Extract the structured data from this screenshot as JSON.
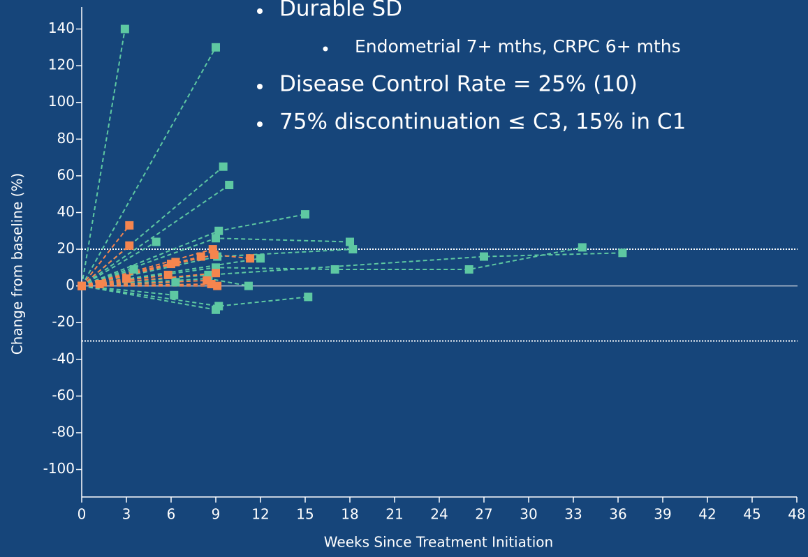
{
  "chart_data": {
    "type": "spider",
    "xlabel": "Weeks Since Treatment Initiation",
    "ylabel": "Change from baseline (%)",
    "xlim": [
      0,
      48
    ],
    "ylim": [
      -115,
      152
    ],
    "xticks": [
      0,
      3,
      6,
      9,
      12,
      15,
      18,
      21,
      24,
      27,
      30,
      33,
      36,
      39,
      42,
      45,
      48
    ],
    "yticks": [
      -100,
      -80,
      -60,
      -40,
      -20,
      0,
      20,
      40,
      60,
      80,
      100,
      120,
      140
    ],
    "ref_lines": [
      20,
      -30
    ],
    "annotations": [
      "Durable SD",
      "Endometrial 7+ mths, CRPC 6+ mths",
      "Disease Control Rate = 25% (10)",
      "75% discontinuation ≤ C3, 15% in C1"
    ],
    "series": [
      {
        "color": "#5ec8a2",
        "x": [
          0,
          2.9
        ],
        "values": [
          0,
          140
        ]
      },
      {
        "color": "#5ec8a2",
        "x": [
          0,
          9
        ],
        "values": [
          0,
          130
        ]
      },
      {
        "color": "#5ec8a2",
        "x": [
          0,
          9.5
        ],
        "values": [
          0,
          65
        ]
      },
      {
        "color": "#5ec8a2",
        "x": [
          0,
          9.9
        ],
        "values": [
          0,
          55
        ]
      },
      {
        "color": "#5ec8a2",
        "x": [
          0,
          9.2,
          15
        ],
        "values": [
          0,
          30,
          39
        ]
      },
      {
        "color": "#5ec8a2",
        "x": [
          0,
          5
        ],
        "values": [
          0,
          24
        ]
      },
      {
        "color": "#5ec8a2",
        "x": [
          0,
          9,
          18
        ],
        "values": [
          0,
          26,
          24
        ]
      },
      {
        "color": "#5ec8a2",
        "x": [
          0,
          9.1,
          18.2
        ],
        "values": [
          0,
          16,
          20
        ]
      },
      {
        "color": "#5ec8a2",
        "x": [
          0,
          12
        ],
        "values": [
          0,
          15
        ]
      },
      {
        "color": "#5ec8a2",
        "x": [
          0,
          9,
          17,
          26,
          33.6
        ],
        "values": [
          0,
          10,
          9,
          9,
          21
        ]
      },
      {
        "color": "#5ec8a2",
        "x": [
          0,
          8.5,
          27,
          36.3
        ],
        "values": [
          0,
          6,
          16,
          18
        ]
      },
      {
        "color": "#5ec8a2",
        "x": [
          0,
          8.5,
          11.2
        ],
        "values": [
          0,
          4,
          0
        ]
      },
      {
        "color": "#5ec8a2",
        "x": [
          0,
          6.3
        ],
        "values": [
          0,
          2
        ]
      },
      {
        "color": "#5ec8a2",
        "x": [
          0,
          6.2
        ],
        "values": [
          0,
          -5
        ]
      },
      {
        "color": "#5ec8a2",
        "x": [
          0,
          9
        ],
        "values": [
          0,
          -13
        ]
      },
      {
        "color": "#5ec8a2",
        "x": [
          0,
          9.2,
          15.2
        ],
        "values": [
          0,
          -11,
          -6
        ]
      },
      {
        "color": "#5ec8a2",
        "x": [
          0,
          3.5
        ],
        "values": [
          0,
          9
        ]
      },
      {
        "color": "#f5854e",
        "x": [
          0,
          3.2
        ],
        "values": [
          0,
          33
        ]
      },
      {
        "color": "#f5854e",
        "x": [
          0,
          3.2
        ],
        "values": [
          0,
          22
        ]
      },
      {
        "color": "#f5854e",
        "x": [
          0,
          6
        ],
        "values": [
          0,
          12
        ]
      },
      {
        "color": "#f5854e",
        "x": [
          0,
          6.3
        ],
        "values": [
          0,
          13
        ]
      },
      {
        "color": "#f5854e",
        "x": [
          0,
          8
        ],
        "values": [
          0,
          16
        ]
      },
      {
        "color": "#f5854e",
        "x": [
          0,
          8.8
        ],
        "values": [
          0,
          20
        ]
      },
      {
        "color": "#f5854e",
        "x": [
          0,
          8.9,
          11.3
        ],
        "values": [
          0,
          17,
          15
        ]
      },
      {
        "color": "#f5854e",
        "x": [
          0,
          9
        ],
        "values": [
          0,
          7
        ]
      },
      {
        "color": "#f5854e",
        "x": [
          0,
          8.4
        ],
        "values": [
          0,
          3
        ]
      },
      {
        "color": "#f5854e",
        "x": [
          0,
          8.7
        ],
        "values": [
          0,
          1
        ]
      },
      {
        "color": "#f5854e",
        "x": [
          0,
          9.1
        ],
        "values": [
          0,
          0
        ]
      },
      {
        "color": "#f5854e",
        "x": [
          0,
          5.8
        ],
        "values": [
          0,
          6
        ]
      },
      {
        "color": "#f5854e",
        "x": [
          0,
          3
        ],
        "values": [
          0,
          4
        ]
      },
      {
        "color": "#f5854e",
        "x": [
          0,
          1.2
        ],
        "values": [
          0,
          1
        ]
      }
    ]
  }
}
